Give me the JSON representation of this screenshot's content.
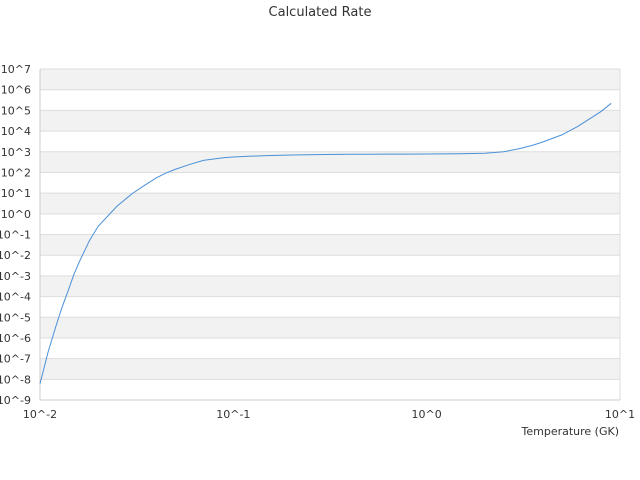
{
  "chart_data": {
    "type": "line",
    "title": "Calculated Rate",
    "xlabel": "Temperature (GK)",
    "ylabel": "",
    "x_scale": "log",
    "y_scale": "log",
    "xlim": [
      0.01,
      10
    ],
    "ylim": [
      1e-09,
      10000000.0
    ],
    "grid": "alternating horizontal bands",
    "legend": "none",
    "x_tick_labels": [
      "10^-2",
      "10^-1",
      "10^0",
      "10^1"
    ],
    "y_tick_labels": [
      "10^-9",
      "10^-8",
      "10^-7",
      "10^-6",
      "10^-5",
      "10^-4",
      "10^-3",
      "10^-2",
      "10^-1",
      "10^0",
      "10^1",
      "10^2",
      "10^3",
      "10^4",
      "10^5",
      "10^6",
      "10^7"
    ],
    "series": [
      {
        "color": "#4a90d9",
        "x": [
          0.01,
          0.011,
          0.012,
          0.013,
          0.014,
          0.015,
          0.016,
          0.018,
          0.02,
          0.025,
          0.03,
          0.035,
          0.04,
          0.045,
          0.05,
          0.06,
          0.07,
          0.08,
          0.09,
          0.1,
          0.12,
          0.15,
          0.2,
          0.3,
          0.4,
          0.5,
          0.6,
          0.8,
          1.0,
          1.5,
          2.0,
          2.5,
          3.0,
          3.5,
          4.0,
          5.0,
          6.0,
          7.0,
          8.0,
          9.0
        ],
        "y": [
          6e-09,
          2e-07,
          3e-06,
          3e-05,
          0.0002,
          0.0012,
          0.005,
          0.05,
          0.25,
          2.3,
          9.5,
          25,
          55,
          95,
          140,
          250,
          380,
          450,
          520,
          560,
          600,
          650,
          700,
          740,
          760,
          760,
          770,
          770,
          780,
          800,
          850,
          1000,
          1400,
          2000,
          3000,
          6500,
          16000.0,
          40000.0,
          90000.0,
          220000.0
        ]
      }
    ]
  }
}
